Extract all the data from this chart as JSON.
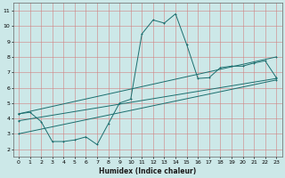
{
  "xlabel": "Humidex (Indice chaleur)",
  "xlim": [
    -0.5,
    23.5
  ],
  "ylim": [
    1.5,
    11.5
  ],
  "xticks": [
    0,
    1,
    2,
    3,
    4,
    5,
    6,
    7,
    8,
    9,
    10,
    11,
    12,
    13,
    14,
    15,
    16,
    17,
    18,
    19,
    20,
    21,
    22,
    23
  ],
  "yticks": [
    2,
    3,
    4,
    5,
    6,
    7,
    8,
    9,
    10,
    11
  ],
  "bg_color": "#cce8e8",
  "grid_color": "#b0d0d0",
  "line_color": "#1a6e6e",
  "jagged": {
    "x": [
      0,
      1,
      2,
      3,
      4,
      5,
      6,
      7,
      8,
      9,
      10,
      11,
      12,
      13,
      14,
      15,
      16,
      17,
      18,
      19,
      20,
      21,
      22,
      23
    ],
    "y": [
      4.3,
      4.4,
      3.8,
      2.5,
      2.5,
      2.6,
      2.8,
      2.3,
      3.65,
      5.0,
      5.25,
      9.5,
      10.4,
      10.2,
      10.8,
      8.8,
      6.6,
      6.65,
      7.3,
      7.4,
      7.4,
      7.6,
      7.75,
      6.65
    ]
  },
  "linear1": {
    "x": [
      0,
      23
    ],
    "y": [
      4.3,
      8.0
    ]
  },
  "linear2": {
    "x": [
      0,
      23
    ],
    "y": [
      3.85,
      6.6
    ]
  },
  "linear3": {
    "x": [
      0,
      23
    ],
    "y": [
      3.0,
      6.5
    ]
  }
}
